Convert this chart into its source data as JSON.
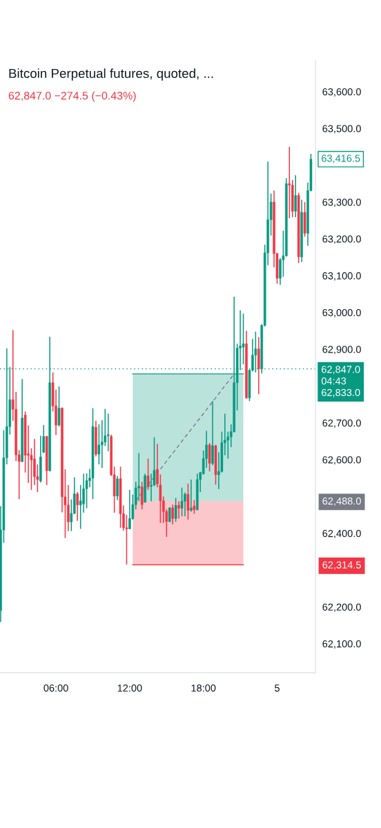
{
  "chart_data": {
    "type": "candlestick",
    "title": "Bitcoin Perpetual futures, quoted, ...",
    "subtitle": "62,847.0 −274.5 (−0.43%)",
    "categories": [
      null,
      null,
      null,
      null,
      null,
      null,
      null,
      null,
      null,
      null,
      null,
      null,
      null,
      null,
      null,
      null,
      null,
      null,
      "06:00",
      null,
      null,
      null,
      null,
      null,
      null,
      null,
      null,
      null,
      null,
      null,
      null,
      null,
      null,
      null,
      null,
      null,
      null,
      null,
      null,
      null,
      null,
      null,
      "12:00",
      null,
      null,
      null,
      null,
      null,
      null,
      null,
      null,
      null,
      null,
      null,
      null,
      null,
      null,
      null,
      null,
      null,
      null,
      null,
      null,
      null,
      null,
      null,
      "18:00",
      null,
      null,
      null,
      null,
      null,
      null,
      null,
      null,
      null,
      null,
      null,
      null,
      null,
      null,
      null,
      null,
      null,
      null,
      null,
      null,
      null,
      null,
      null,
      "5",
      null,
      null,
      null,
      null,
      null,
      null,
      null,
      null,
      null,
      null,
      null
    ],
    "ohlc": [
      [
        62190,
        62474,
        62159,
        62409
      ],
      [
        62409,
        62680,
        62374,
        62605
      ],
      [
        62605,
        62902,
        62587,
        62690
      ],
      [
        62690,
        62852,
        62668,
        62763
      ],
      [
        62763,
        62952,
        62706,
        62737
      ],
      [
        62737,
        62784,
        62596,
        62613
      ],
      [
        62613,
        62626,
        62493,
        62595
      ],
      [
        62595,
        62819,
        62593,
        62713
      ],
      [
        62721,
        62731,
        62565,
        62612
      ],
      [
        62616,
        62693,
        62537,
        62612
      ],
      [
        62612,
        62631,
        62518,
        62599
      ],
      [
        62602,
        62656,
        62531,
        62554
      ],
      [
        62554,
        62587,
        62512,
        62546
      ],
      [
        62542,
        62665,
        62538,
        62607
      ],
      [
        62620,
        62694,
        62618,
        62663
      ],
      [
        62663,
        62665,
        62531,
        62570
      ],
      [
        62570,
        62934,
        62568,
        62809
      ],
      [
        62809,
        62837,
        62731,
        62746
      ],
      [
        62746,
        62790,
        62667,
        62694
      ],
      [
        62694,
        62799,
        62690,
        62740
      ],
      [
        62740,
        62742,
        62457,
        62499
      ],
      [
        62499,
        62574,
        62387,
        62477
      ],
      [
        62477,
        62531,
        62406,
        62431
      ],
      [
        62431,
        62492,
        62406,
        62454
      ],
      [
        62454,
        62552,
        62452,
        62507
      ],
      [
        62507,
        62512,
        62434,
        62477
      ],
      [
        62477,
        62531,
        62412,
        62488
      ],
      [
        62480,
        62562,
        62456,
        62521
      ],
      [
        62521,
        62563,
        62468,
        62543
      ],
      [
        62543,
        62575,
        62525,
        62550
      ],
      [
        62550,
        62740,
        62493,
        62690
      ],
      [
        62688,
        62706,
        62609,
        62615
      ],
      [
        62615,
        62696,
        62587,
        62640
      ],
      [
        62640,
        62707,
        62578,
        62648
      ],
      [
        62648,
        62738,
        62637,
        62665
      ],
      [
        62665,
        62725,
        62623,
        62668
      ],
      [
        62663,
        62668,
        62556,
        62559
      ],
      [
        62559,
        62581,
        62456,
        62501
      ],
      [
        62501,
        62556,
        62490,
        62548
      ],
      [
        62548,
        62581,
        62415,
        62453
      ],
      [
        62453,
        62475,
        62407,
        62415
      ],
      [
        62415,
        62450,
        62315,
        62412
      ],
      [
        62412,
        62518,
        62412,
        62440
      ],
      [
        62440,
        62505,
        62437,
        62478
      ],
      [
        62478,
        62540,
        62465,
        62523
      ],
      [
        62523,
        62618,
        62487,
        62528
      ],
      [
        62526,
        62540,
        62465,
        62478
      ],
      [
        62484,
        62562,
        62484,
        62556
      ],
      [
        62556,
        62603,
        62518,
        62526
      ],
      [
        62528,
        62562,
        62487,
        62531
      ],
      [
        62531,
        62661,
        62528,
        62571
      ],
      [
        62574,
        62643,
        62525,
        62534
      ],
      [
        62531,
        62560,
        62428,
        62488
      ],
      [
        62488,
        62500,
        62428,
        62459
      ],
      [
        62459,
        62465,
        62390,
        62432
      ],
      [
        62432,
        62471,
        62430,
        62469
      ],
      [
        62469,
        62478,
        62424,
        62440
      ],
      [
        62440,
        62496,
        62431,
        62476
      ],
      [
        62476,
        62487,
        62440,
        62468
      ],
      [
        62468,
        62524,
        62446,
        62487
      ],
      [
        62487,
        62511,
        62446,
        62506
      ],
      [
        62506,
        62535,
        62437,
        62462
      ],
      [
        62462,
        62546,
        62459,
        62469
      ],
      [
        62474,
        62490,
        62453,
        62464
      ],
      [
        62464,
        62562,
        62462,
        62546
      ],
      [
        62546,
        62567,
        62512,
        62565
      ],
      [
        62562,
        62625,
        62559,
        62603
      ],
      [
        62603,
        62678,
        62578,
        62640
      ],
      [
        62640,
        62645,
        62568,
        62590
      ],
      [
        62590,
        62759,
        62585,
        62638
      ],
      [
        62638,
        62640,
        62532,
        62559
      ],
      [
        62559,
        62620,
        62520,
        62568
      ],
      [
        62568,
        62676,
        62565,
        62646
      ],
      [
        62646,
        62725,
        62612,
        62653
      ],
      [
        62653,
        62676,
        62603,
        62662
      ],
      [
        62662,
        62696,
        62634,
        62676
      ],
      [
        62676,
        63043,
        62674,
        62809
      ],
      [
        62809,
        62915,
        62734,
        62903
      ],
      [
        62903,
        63006,
        62843,
        62909
      ],
      [
        62906,
        62997,
        62859,
        62915
      ],
      [
        62915,
        62950,
        62766,
        62768
      ],
      [
        62768,
        62845,
        62759,
        62843
      ],
      [
        62843,
        62928,
        62840,
        62884
      ],
      [
        62884,
        62948,
        62837,
        62901
      ],
      [
        62901,
        62933,
        62778,
        62847
      ],
      [
        62847,
        62968,
        62834,
        62965
      ],
      [
        62965,
        63184,
        62962,
        63162
      ],
      [
        63162,
        63410,
        63128,
        63252
      ],
      [
        63252,
        63323,
        63209,
        63300
      ],
      [
        63300,
        63331,
        63123,
        63160
      ],
      [
        63160,
        63162,
        63078,
        63093
      ],
      [
        63093,
        63148,
        63075,
        63143
      ],
      [
        63143,
        63222,
        63097,
        63154
      ],
      [
        63154,
        63365,
        63152,
        63350
      ],
      [
        63350,
        63450,
        63256,
        63346
      ],
      [
        63346,
        63360,
        63259,
        63275
      ],
      [
        63275,
        63373,
        63259,
        63318
      ],
      [
        63318,
        63325,
        63134,
        63151
      ],
      [
        63151,
        63306,
        63137,
        63272
      ],
      [
        63272,
        63300,
        63206,
        63215
      ],
      [
        63215,
        63353,
        63181,
        63331
      ],
      [
        63331,
        63431,
        63329,
        63416.5
      ]
    ],
    "colors": [
      "#089981",
      "#089981",
      "#089981",
      "#089981",
      "#f23645",
      "#f23645",
      "#f23645",
      "#089981",
      "#f23645",
      "#f23645",
      "#f23645",
      "#f23645",
      "#f23645",
      "#089981",
      "#089981",
      "#f23645",
      "#089981",
      "#f23645",
      "#f23645",
      "#089981",
      "#f23645",
      "#f23645",
      "#f23645",
      "#089981",
      "#089981",
      "#f23645",
      "#089981",
      "#089981",
      "#089981",
      "#089981",
      "#089981",
      "#f23645",
      "#089981",
      "#089981",
      "#089981",
      "#089981",
      "#f23645",
      "#f23645",
      "#089981",
      "#f23645",
      "#f23645",
      "#f23645",
      "#089981",
      "#089981",
      "#089981",
      "#089981",
      "#f23645",
      "#089981",
      "#f23645",
      "#089981",
      "#089981",
      "#f23645",
      "#f23645",
      "#f23645",
      "#f23645",
      "#089981",
      "#f23645",
      "#089981",
      "#f23645",
      "#089981",
      "#089981",
      "#f23645",
      "#089981",
      "#f23645",
      "#089981",
      "#089981",
      "#089981",
      "#089981",
      "#f23645",
      "#089981",
      "#f23645",
      "#089981",
      "#089981",
      "#089981",
      "#089981",
      "#089981",
      "#089981",
      "#089981",
      "#089981",
      "#089981",
      "#f23645",
      "#089981",
      "#089981",
      "#089981",
      "#f23645",
      "#089981",
      "#089981",
      "#089981",
      "#089981",
      "#f23645",
      "#f23645",
      "#089981",
      "#089981",
      "#089981",
      "#f23645",
      "#f23645",
      "#089981",
      "#f23645",
      "#089981",
      "#f23645",
      "#089981",
      "#089981"
    ],
    "value_labels": [
      null,
      null,
      null,
      null,
      null,
      null,
      null,
      null,
      null,
      null,
      null,
      null,
      null,
      null,
      null,
      null,
      null,
      null,
      null,
      null,
      null,
      null,
      null,
      null,
      null,
      null,
      null,
      null,
      null,
      null,
      null,
      null,
      null,
      null,
      null,
      null,
      null,
      null,
      null,
      null,
      null,
      null,
      null,
      null,
      null,
      null,
      null,
      null,
      null,
      null,
      null,
      null,
      null,
      null,
      null,
      null,
      null,
      null,
      null,
      null,
      null,
      null,
      null,
      null,
      null,
      null,
      null,
      null,
      null,
      null,
      null,
      null,
      null,
      null,
      null,
      null,
      null,
      null,
      null,
      null,
      null,
      null,
      null,
      null,
      null,
      null,
      null,
      null,
      null,
      null,
      null,
      null,
      null,
      null,
      null,
      null,
      null,
      null,
      null,
      null,
      null,
      "63,416.5"
    ],
    "series": [
      {
        "type": "line",
        "color": "#089981",
        "line_style": "solid",
        "values": [
          null,
          null,
          null,
          null,
          null,
          null,
          null,
          null,
          null,
          null,
          null,
          null,
          null,
          null,
          null,
          null,
          null,
          null,
          null,
          null,
          null,
          null,
          null,
          null,
          null,
          null,
          null,
          null,
          null,
          null,
          null,
          null,
          null,
          null,
          null,
          null,
          null,
          null,
          null,
          null,
          null,
          null,
          null,
          62833,
          62833,
          62833,
          62833,
          62833,
          62833,
          62833,
          62833,
          62833,
          62833,
          62833,
          62833,
          62833,
          62833,
          62833,
          62833,
          62833,
          62833,
          62833,
          62833,
          62833,
          62833,
          62833,
          62833,
          62833,
          62833,
          62833,
          62833,
          62833,
          62833,
          62833,
          62833,
          62833,
          62833,
          62833,
          62833,
          62833,
          null,
          null,
          null,
          null,
          null,
          null,
          null,
          null,
          null,
          null,
          null,
          null,
          null,
          null,
          null,
          null,
          null,
          null,
          null,
          null,
          null,
          null
        ],
        "lower": [
          null,
          null,
          null,
          null,
          null,
          null,
          null,
          null,
          null,
          null,
          null,
          null,
          null,
          null,
          null,
          null,
          null,
          null,
          null,
          null,
          null,
          null,
          null,
          null,
          null,
          null,
          null,
          null,
          null,
          null,
          null,
          null,
          null,
          null,
          null,
          null,
          null,
          null,
          null,
          null,
          null,
          null,
          null,
          62488,
          62488,
          62488,
          62488,
          62488,
          62488,
          62488,
          62488,
          62488,
          62488,
          62488,
          62488,
          62488,
          62488,
          62488,
          62488,
          62488,
          62488,
          62488,
          62488,
          62488,
          62488,
          62488,
          62488,
          62488,
          62488,
          62488,
          62488,
          62488,
          62488,
          62488,
          62488,
          62488,
          62488,
          62488,
          62488,
          62488,
          null,
          null,
          null,
          null,
          null,
          null,
          null,
          null,
          null,
          null,
          null,
          null,
          null,
          null,
          null,
          null,
          null,
          null,
          null,
          null,
          null,
          null
        ],
        "upper": [
          null,
          null,
          null,
          null,
          null,
          null,
          null,
          null,
          null,
          null,
          null,
          null,
          null,
          null,
          null,
          null,
          null,
          null,
          null,
          null,
          null,
          null,
          null,
          null,
          null,
          null,
          null,
          null,
          null,
          null,
          null,
          null,
          null,
          null,
          null,
          null,
          null,
          null,
          null,
          null,
          null,
          null,
          null,
          62833,
          62833,
          62833,
          62833,
          62833,
          62833,
          62833,
          62833,
          62833,
          62833,
          62833,
          62833,
          62833,
          62833,
          62833,
          62833,
          62833,
          62833,
          62833,
          62833,
          62833,
          62833,
          62833,
          62833,
          62833,
          62833,
          62833,
          62833,
          62833,
          62833,
          62833,
          62833,
          62833,
          62833,
          62833,
          62833,
          62833,
          null,
          null,
          null,
          null,
          null,
          null,
          null,
          null,
          null,
          null,
          null,
          null,
          null,
          null,
          null,
          null,
          null,
          null,
          null,
          null,
          null,
          null
        ]
      },
      {
        "type": "line",
        "color": "#f23645",
        "line_style": "solid",
        "values": [
          null,
          null,
          null,
          null,
          null,
          null,
          null,
          null,
          null,
          null,
          null,
          null,
          null,
          null,
          null,
          null,
          null,
          null,
          null,
          null,
          null,
          null,
          null,
          null,
          null,
          null,
          null,
          null,
          null,
          null,
          null,
          null,
          null,
          null,
          null,
          null,
          null,
          null,
          null,
          null,
          null,
          null,
          null,
          62314.5,
          62314.5,
          62314.5,
          62314.5,
          62314.5,
          62314.5,
          62314.5,
          62314.5,
          62314.5,
          62314.5,
          62314.5,
          62314.5,
          62314.5,
          62314.5,
          62314.5,
          62314.5,
          62314.5,
          62314.5,
          62314.5,
          62314.5,
          62314.5,
          62314.5,
          62314.5,
          62314.5,
          62314.5,
          62314.5,
          62314.5,
          62314.5,
          62314.5,
          62314.5,
          62314.5,
          62314.5,
          62314.5,
          62314.5,
          62314.5,
          62314.5,
          62314.5,
          null,
          null,
          null,
          null,
          null,
          null,
          null,
          null,
          null,
          null,
          null,
          null,
          null,
          null,
          null,
          null,
          null,
          null,
          null,
          null,
          null,
          null
        ],
        "lower": [
          null,
          null,
          null,
          null,
          null,
          null,
          null,
          null,
          null,
          null,
          null,
          null,
          null,
          null,
          null,
          null,
          null,
          null,
          null,
          null,
          null,
          null,
          null,
          null,
          null,
          null,
          null,
          null,
          null,
          null,
          null,
          null,
          null,
          null,
          null,
          null,
          null,
          null,
          null,
          null,
          null,
          null,
          null,
          62314.5,
          62314.5,
          62314.5,
          62314.5,
          62314.5,
          62314.5,
          62314.5,
          62314.5,
          62314.5,
          62314.5,
          62314.5,
          62314.5,
          62314.5,
          62314.5,
          62314.5,
          62314.5,
          62314.5,
          62314.5,
          62314.5,
          62314.5,
          62314.5,
          62314.5,
          62314.5,
          62314.5,
          62314.5,
          62314.5,
          62314.5,
          62314.5,
          62314.5,
          62314.5,
          62314.5,
          62314.5,
          62314.5,
          62314.5,
          62314.5,
          62314.5,
          62314.5,
          null,
          null,
          null,
          null,
          null,
          null,
          null,
          null,
          null,
          null,
          null,
          null,
          null,
          null,
          null,
          null,
          null,
          null,
          null,
          null,
          null,
          null
        ],
        "upper": [
          null,
          null,
          null,
          null,
          null,
          null,
          null,
          null,
          null,
          null,
          null,
          null,
          null,
          null,
          null,
          null,
          null,
          null,
          null,
          null,
          null,
          null,
          null,
          null,
          null,
          null,
          null,
          null,
          null,
          null,
          null,
          null,
          null,
          null,
          null,
          null,
          null,
          null,
          null,
          null,
          null,
          null,
          null,
          62488,
          62488,
          62488,
          62488,
          62488,
          62488,
          62488,
          62488,
          62488,
          62488,
          62488,
          62488,
          62488,
          62488,
          62488,
          62488,
          62488,
          62488,
          62488,
          62488,
          62488,
          62488,
          62488,
          62488,
          62488,
          62488,
          62488,
          62488,
          62488,
          62488,
          62488,
          62488,
          62488,
          62488,
          62488,
          62488,
          62488,
          null,
          null,
          null,
          null,
          null,
          null,
          null,
          null,
          null,
          null,
          null,
          null,
          null,
          null,
          null,
          null,
          null,
          null,
          null,
          null,
          null,
          null
        ]
      },
      {
        "type": "line",
        "color": "#787b86",
        "line_style": "dashed",
        "values": [
          null,
          null,
          null,
          null,
          null,
          null,
          null,
          null,
          null,
          null,
          null,
          null,
          null,
          null,
          null,
          null,
          null,
          null,
          null,
          null,
          null,
          null,
          null,
          null,
          null,
          null,
          null,
          null,
          null,
          null,
          null,
          null,
          null,
          null,
          null,
          null,
          null,
          null,
          null,
          null,
          null,
          null,
          null,
          null,
          62488,
          62499,
          62510,
          62520,
          62531,
          62542,
          62553,
          62563,
          62574,
          62585,
          62596,
          62607,
          62617,
          62628,
          62639,
          62650,
          62661,
          62671,
          62682,
          62693,
          62704,
          62714,
          62725,
          62736,
          62747,
          62758,
          62768,
          62779,
          62790,
          62801,
          62811,
          62822,
          62833,
          null,
          null,
          null,
          null,
          null,
          null,
          null,
          null,
          null,
          null,
          null,
          null,
          null,
          null,
          null,
          null,
          null,
          null,
          null,
          null,
          null,
          null,
          null,
          null,
          null
        ]
      }
    ],
    "ylim": [
      62021,
      63684
    ],
    "yticks": [
      {
        "value": 62100,
        "label": "62,100.0"
      },
      {
        "value": 62200,
        "label": "62,200.0"
      },
      {
        "value": 62314.5,
        "label": "62,314.5"
      },
      {
        "value": 62400,
        "label": "62,400.0"
      },
      {
        "value": 62488,
        "label": "62,488.0"
      },
      {
        "value": 62600,
        "label": "62,600.0"
      },
      {
        "value": 62700,
        "label": "62,700.0"
      },
      {
        "value": 62900,
        "label": "62,900.0"
      },
      {
        "value": 63000,
        "label": "63,000.0"
      },
      {
        "value": 63100,
        "label": "63,100.0"
      },
      {
        "value": 63200,
        "label": "63,200.0"
      },
      {
        "value": 63300,
        "label": "63,300.0"
      },
      {
        "value": 63500,
        "label": "63,500.0"
      },
      {
        "value": 63600,
        "label": "63,600.0"
      }
    ],
    "ref_lines": [
      {
        "axis": "y",
        "value": 62847,
        "label": "62,847.0\n04:43\n62,833.0",
        "color": "#089981",
        "line_style": "dotted"
      }
    ]
  }
}
